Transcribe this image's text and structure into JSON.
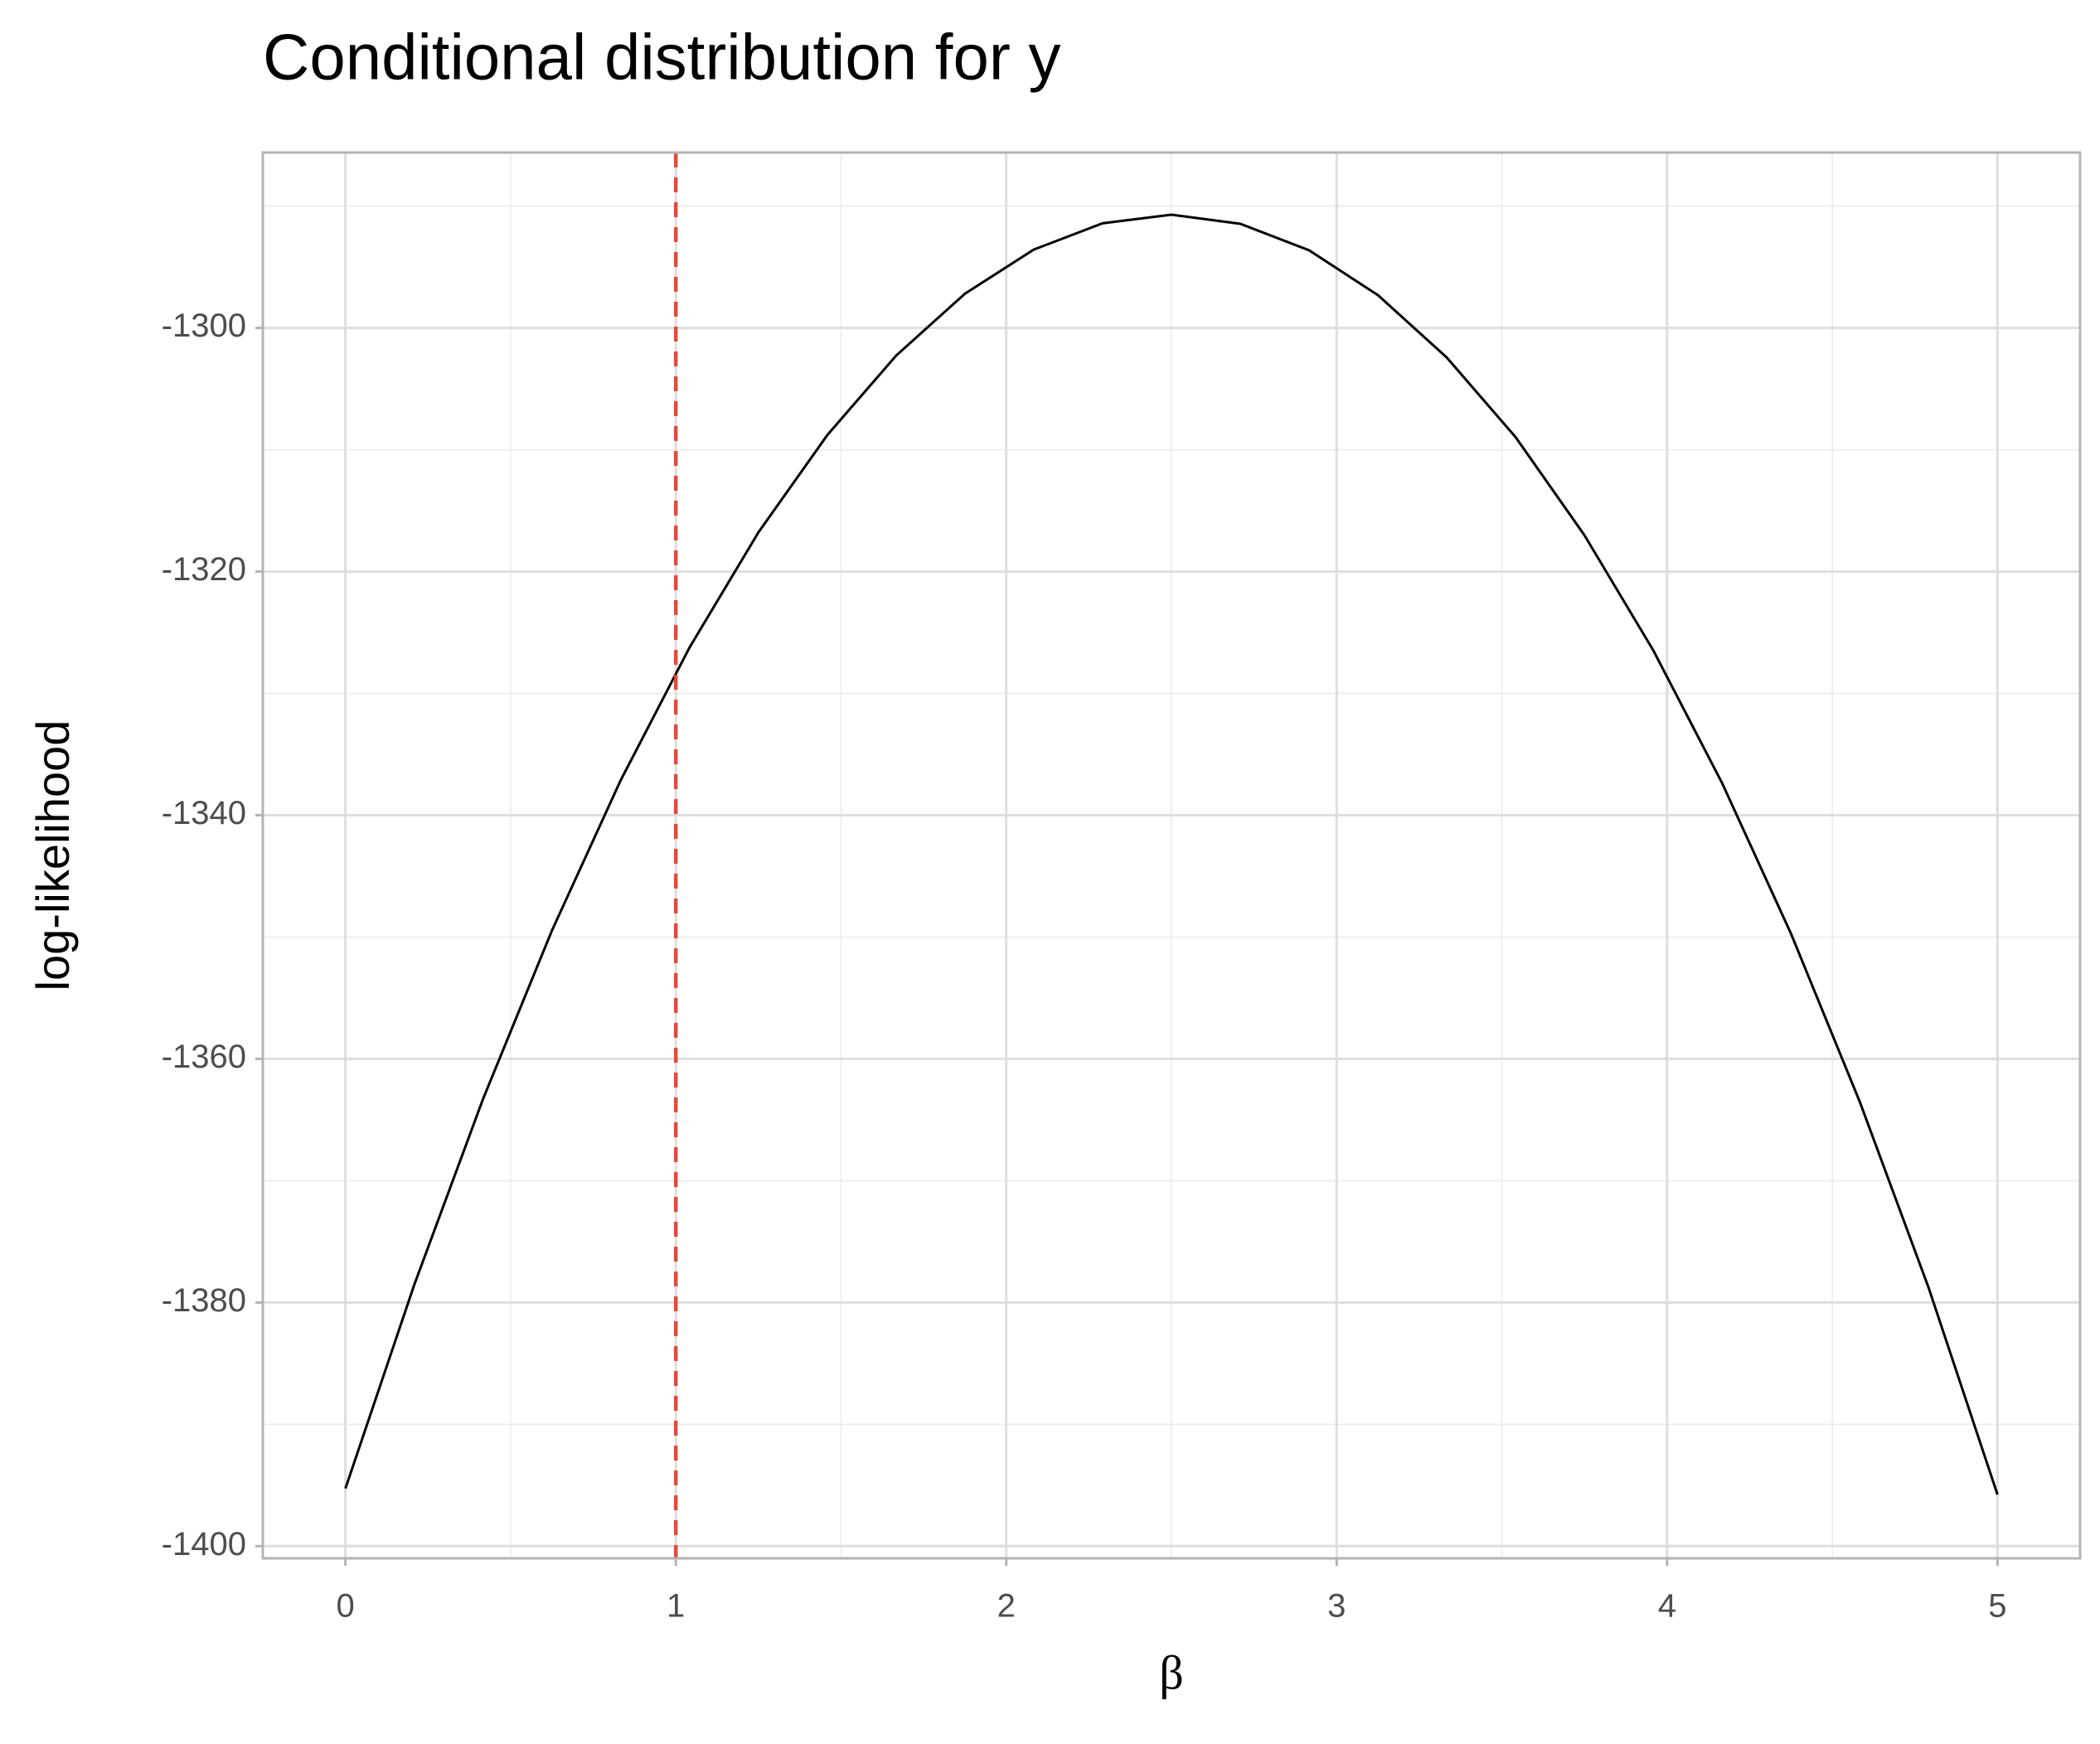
{
  "chart_data": {
    "type": "line",
    "title": "Conditional distribution for  y",
    "x_label": "β",
    "y_label": "log-likelihood",
    "x": [
      0,
      0.2083,
      0.4167,
      0.625,
      0.8333,
      1.0417,
      1.25,
      1.4583,
      1.6667,
      1.875,
      2.0833,
      2.2917,
      2.5,
      2.7083,
      2.9167,
      3.125,
      3.3333,
      3.5417,
      3.75,
      3.9583,
      4.1667,
      4.375,
      4.5833,
      4.7917,
      5
    ],
    "series": [
      {
        "color": "#000000",
        "values": [
          -1395.27,
          -1378.55,
          -1363.28,
          -1349.47,
          -1337.12,
          -1326.22,
          -1316.78,
          -1308.8,
          -1302.27,
          -1297.19,
          -1293.57,
          -1291.41,
          -1290.7,
          -1291.45,
          -1293.63,
          -1297.31,
          -1302.43,
          -1308.97,
          -1317.02,
          -1326.47,
          -1337.37,
          -1349.72,
          -1363.53,
          -1378.8,
          -1395.77
        ]
      }
    ],
    "vline": {
      "x": 1,
      "color": "#e8483a"
    },
    "xlim": [
      -0.25,
      5.25
    ],
    "xticks": [
      0,
      1,
      2,
      3,
      4,
      5
    ],
    "ylim": [
      -1401,
      -1285.6
    ],
    "yticks": [
      -1400,
      -1380,
      -1360,
      -1340,
      -1320,
      -1300
    ],
    "minor_xticks": [
      0.5,
      1.5,
      2.5,
      3.5,
      4.5
    ],
    "minor_yticks": [
      -1390,
      -1370,
      -1350,
      -1330,
      -1310,
      -1290
    ],
    "grid": true
  }
}
